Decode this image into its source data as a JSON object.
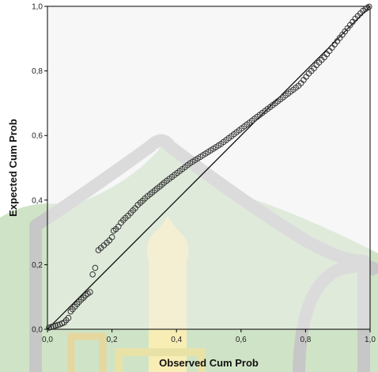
{
  "chart_data": {
    "type": "scatter",
    "title": "",
    "xlabel": "Observed Cum Prob",
    "ylabel": "Expected Cum Prob",
    "xlim": [
      0.0,
      1.0
    ],
    "ylim": [
      0.0,
      1.0
    ],
    "xticks": [
      "0,0",
      "0,2",
      "0,4",
      "0,6",
      "0,8",
      "1,0"
    ],
    "yticks": [
      "0,0",
      "0,2",
      "0,4",
      "0,6",
      "0,8",
      "1,0"
    ],
    "tick_values": [
      0.0,
      0.2,
      0.4,
      0.6,
      0.8,
      1.0
    ],
    "reference_line": [
      [
        0.0,
        0.0
      ],
      [
        1.0,
        1.0
      ]
    ],
    "grid": false,
    "colors": {
      "plot_background": "#f0f0f0",
      "marker_stroke": "#333333",
      "line": "#000000"
    },
    "points": [
      [
        0.005,
        0.005
      ],
      [
        0.012,
        0.007
      ],
      [
        0.018,
        0.009
      ],
      [
        0.025,
        0.011
      ],
      [
        0.032,
        0.013
      ],
      [
        0.038,
        0.015
      ],
      [
        0.045,
        0.018
      ],
      [
        0.052,
        0.021
      ],
      [
        0.058,
        0.028
      ],
      [
        0.065,
        0.035
      ],
      [
        0.072,
        0.055
      ],
      [
        0.078,
        0.062
      ],
      [
        0.085,
        0.07
      ],
      [
        0.092,
        0.078
      ],
      [
        0.098,
        0.085
      ],
      [
        0.105,
        0.092
      ],
      [
        0.112,
        0.098
      ],
      [
        0.118,
        0.105
      ],
      [
        0.125,
        0.11
      ],
      [
        0.132,
        0.115
      ],
      [
        0.14,
        0.17
      ],
      [
        0.148,
        0.19
      ],
      [
        0.158,
        0.245
      ],
      [
        0.166,
        0.252
      ],
      [
        0.175,
        0.26
      ],
      [
        0.184,
        0.268
      ],
      [
        0.192,
        0.275
      ],
      [
        0.2,
        0.285
      ],
      [
        0.205,
        0.305
      ],
      [
        0.212,
        0.31
      ],
      [
        0.22,
        0.318
      ],
      [
        0.228,
        0.33
      ],
      [
        0.235,
        0.338
      ],
      [
        0.242,
        0.345
      ],
      [
        0.25,
        0.352
      ],
      [
        0.258,
        0.36
      ],
      [
        0.265,
        0.368
      ],
      [
        0.272,
        0.375
      ],
      [
        0.28,
        0.385
      ],
      [
        0.288,
        0.392
      ],
      [
        0.295,
        0.398
      ],
      [
        0.302,
        0.405
      ],
      [
        0.31,
        0.412
      ],
      [
        0.318,
        0.418
      ],
      [
        0.325,
        0.424
      ],
      [
        0.333,
        0.43
      ],
      [
        0.34,
        0.436
      ],
      [
        0.348,
        0.442
      ],
      [
        0.355,
        0.448
      ],
      [
        0.362,
        0.454
      ],
      [
        0.37,
        0.46
      ],
      [
        0.378,
        0.466
      ],
      [
        0.386,
        0.472
      ],
      [
        0.394,
        0.478
      ],
      [
        0.402,
        0.484
      ],
      [
        0.41,
        0.49
      ],
      [
        0.418,
        0.496
      ],
      [
        0.426,
        0.502
      ],
      [
        0.434,
        0.508
      ],
      [
        0.442,
        0.514
      ],
      [
        0.45,
        0.519
      ],
      [
        0.458,
        0.524
      ],
      [
        0.466,
        0.529
      ],
      [
        0.474,
        0.534
      ],
      [
        0.482,
        0.539
      ],
      [
        0.49,
        0.544
      ],
      [
        0.498,
        0.549
      ],
      [
        0.506,
        0.554
      ],
      [
        0.514,
        0.559
      ],
      [
        0.522,
        0.564
      ],
      [
        0.53,
        0.569
      ],
      [
        0.538,
        0.574
      ],
      [
        0.546,
        0.58
      ],
      [
        0.554,
        0.586
      ],
      [
        0.562,
        0.592
      ],
      [
        0.57,
        0.598
      ],
      [
        0.578,
        0.604
      ],
      [
        0.586,
        0.61
      ],
      [
        0.594,
        0.616
      ],
      [
        0.602,
        0.622
      ],
      [
        0.61,
        0.628
      ],
      [
        0.618,
        0.634
      ],
      [
        0.626,
        0.64
      ],
      [
        0.634,
        0.646
      ],
      [
        0.642,
        0.652
      ],
      [
        0.65,
        0.658
      ],
      [
        0.658,
        0.664
      ],
      [
        0.666,
        0.67
      ],
      [
        0.674,
        0.676
      ],
      [
        0.682,
        0.682
      ],
      [
        0.69,
        0.688
      ],
      [
        0.698,
        0.694
      ],
      [
        0.706,
        0.7
      ],
      [
        0.714,
        0.706
      ],
      [
        0.722,
        0.712
      ],
      [
        0.73,
        0.718
      ],
      [
        0.738,
        0.724
      ],
      [
        0.746,
        0.73
      ],
      [
        0.754,
        0.736
      ],
      [
        0.762,
        0.742
      ],
      [
        0.77,
        0.748
      ],
      [
        0.778,
        0.754
      ],
      [
        0.786,
        0.762
      ],
      [
        0.794,
        0.772
      ],
      [
        0.802,
        0.782
      ],
      [
        0.81,
        0.792
      ],
      [
        0.818,
        0.8
      ],
      [
        0.826,
        0.808
      ],
      [
        0.834,
        0.818
      ],
      [
        0.842,
        0.826
      ],
      [
        0.85,
        0.834
      ],
      [
        0.858,
        0.842
      ],
      [
        0.866,
        0.852
      ],
      [
        0.874,
        0.862
      ],
      [
        0.882,
        0.872
      ],
      [
        0.89,
        0.882
      ],
      [
        0.898,
        0.892
      ],
      [
        0.906,
        0.902
      ],
      [
        0.914,
        0.912
      ],
      [
        0.922,
        0.922
      ],
      [
        0.93,
        0.932
      ],
      [
        0.938,
        0.942
      ],
      [
        0.946,
        0.952
      ],
      [
        0.954,
        0.962
      ],
      [
        0.962,
        0.97
      ],
      [
        0.97,
        0.978
      ],
      [
        0.978,
        0.986
      ],
      [
        0.986,
        0.992
      ],
      [
        0.992,
        0.996
      ],
      [
        0.997,
        0.999
      ]
    ]
  }
}
